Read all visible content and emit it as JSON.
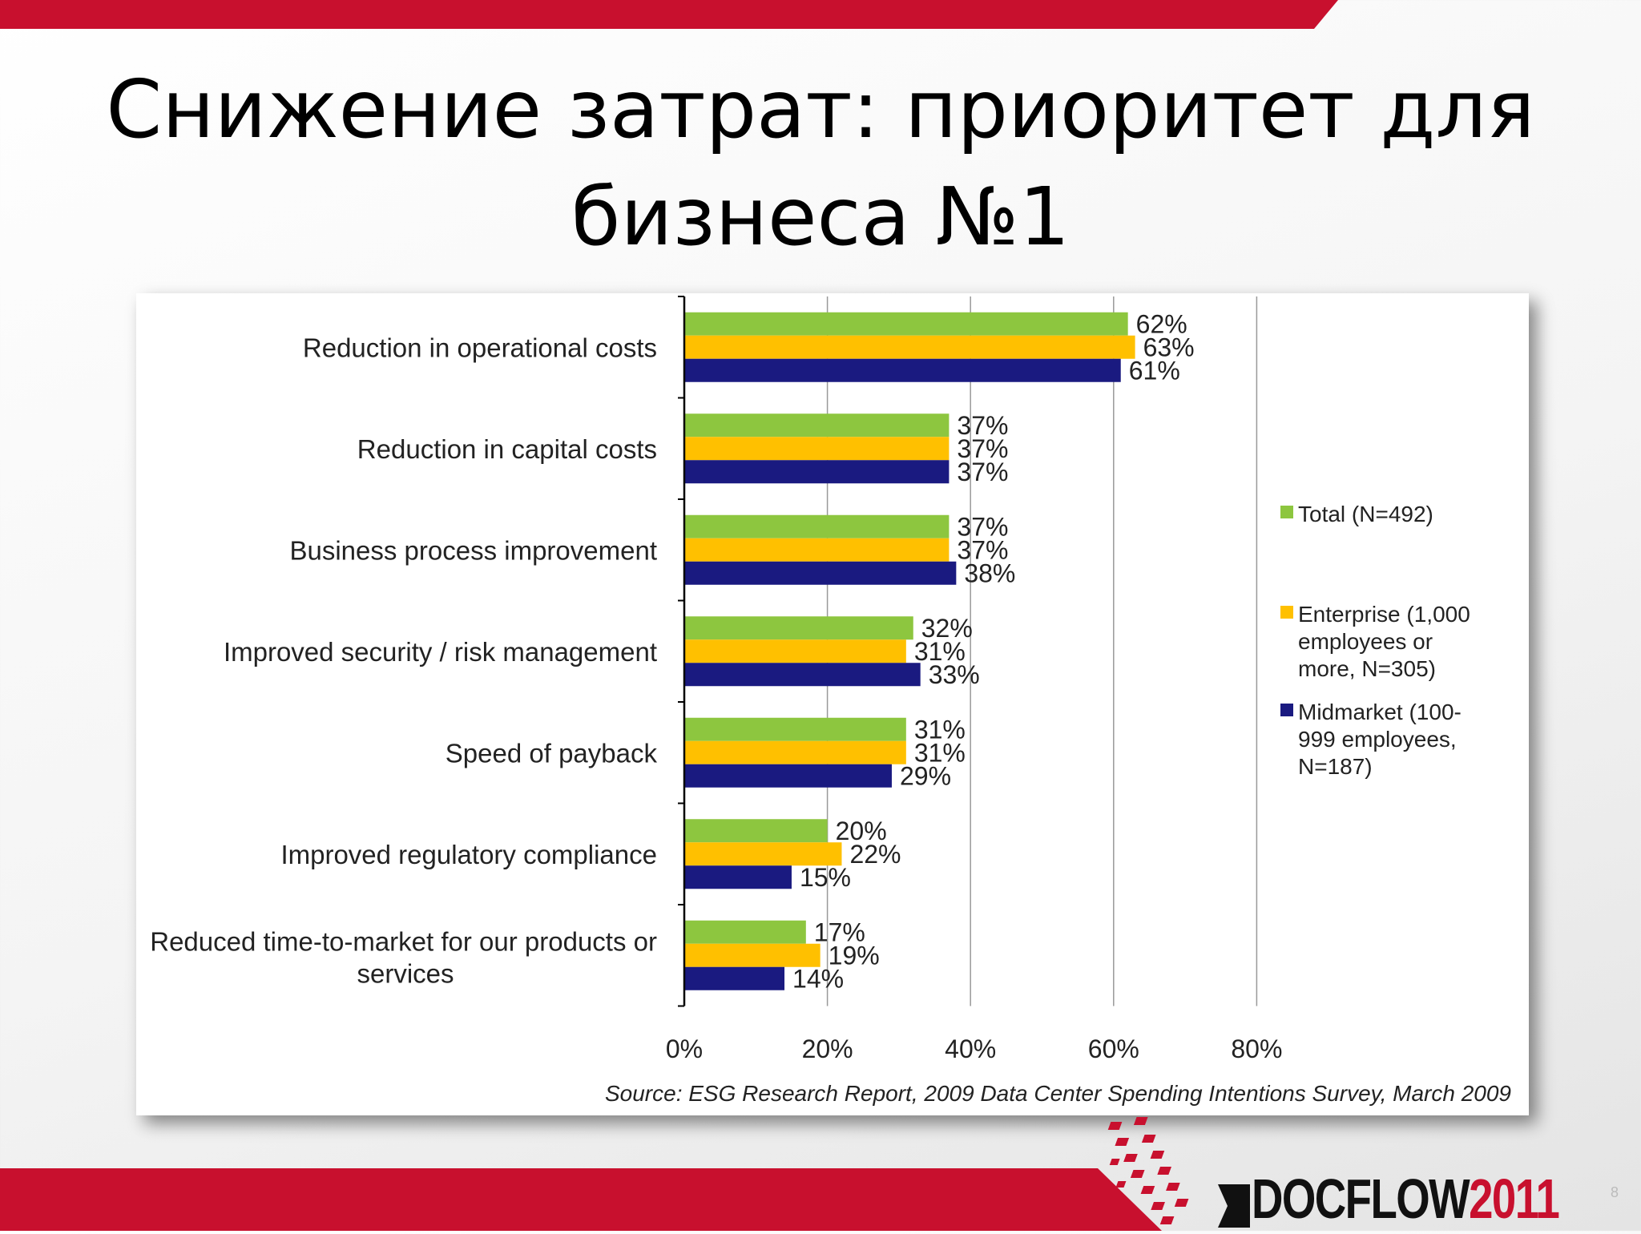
{
  "slide": {
    "title": "Снижение затрат: приоритет для бизнеса №1",
    "page_number": "8"
  },
  "colors": {
    "total": "#8dc63f",
    "enterprise": "#ffc000",
    "midmarket": "#1a1a80",
    "accent_red": "#c8102e"
  },
  "logo": {
    "brand": "DOCFLOW",
    "year": "2011"
  },
  "chart_data": {
    "type": "bar",
    "orientation": "horizontal",
    "categories": [
      "Reduction in operational costs",
      "Reduction in capital costs",
      "Business process improvement",
      "Improved security / risk management",
      "Speed of payback",
      "Improved regulatory compliance",
      "Reduced time-to-market for our products or services"
    ],
    "series": [
      {
        "name": "Total (N=492)",
        "color": "#8dc63f",
        "values": [
          62,
          37,
          37,
          32,
          31,
          20,
          17
        ]
      },
      {
        "name": "Enterprise (1,000 employees or more, N=305)",
        "color": "#ffc000",
        "values": [
          63,
          37,
          37,
          31,
          31,
          22,
          19
        ]
      },
      {
        "name": "Midmarket (100-999 employees, N=187)",
        "color": "#1a1a80",
        "values": [
          61,
          37,
          38,
          33,
          29,
          15,
          14
        ]
      }
    ],
    "value_suffix": "%",
    "xlim": [
      0,
      80
    ],
    "xticks": [
      "0%",
      "20%",
      "40%",
      "60%",
      "80%"
    ],
    "grid": "vertical",
    "legend_position": "right",
    "source": "Source: ESG Research Report, 2009 Data Center Spending Intentions Survey, March 2009"
  }
}
